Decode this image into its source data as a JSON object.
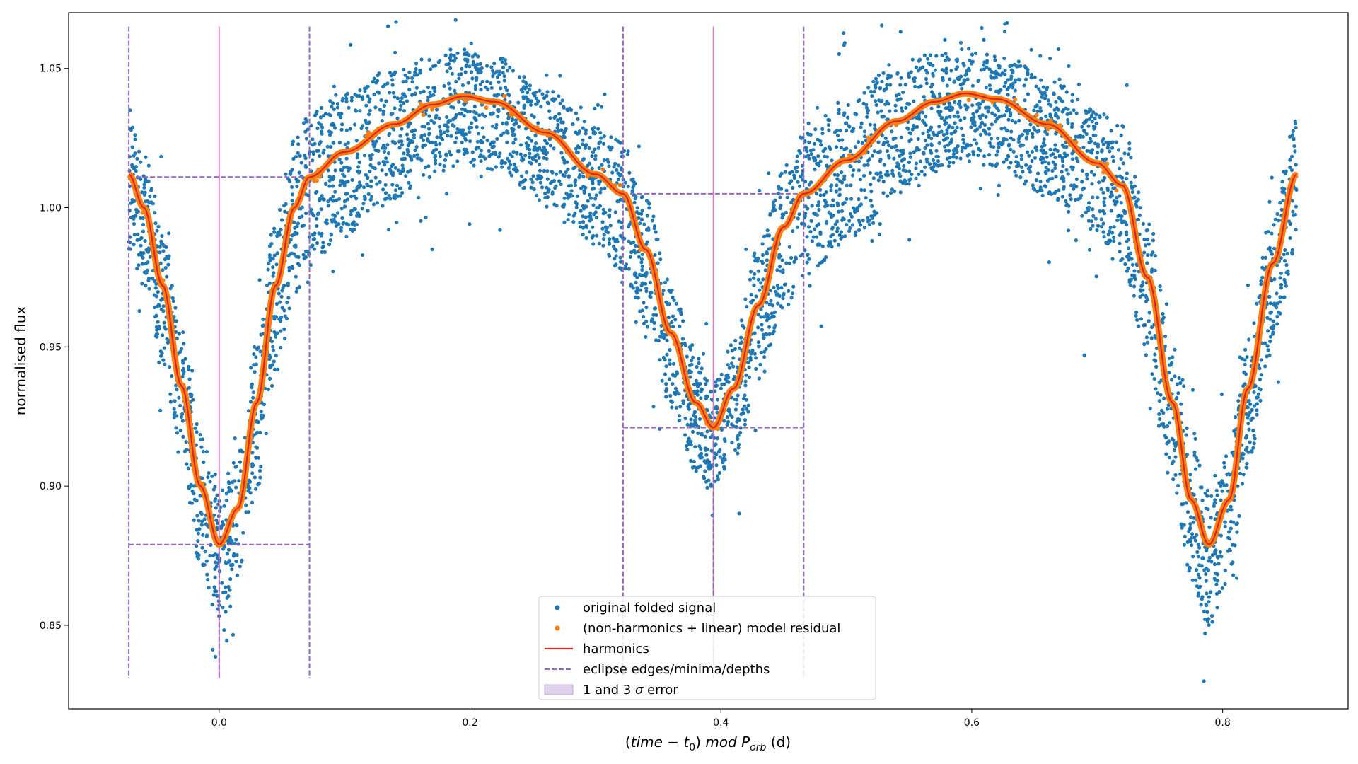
{
  "chart_data": {
    "type": "scatter",
    "xlabel_parts": [
      "(",
      "time",
      " − ",
      "t",
      "0",
      ") ",
      "mod",
      " ",
      "P",
      "orb",
      " (d)"
    ],
    "ylabel": "normalised flux",
    "xlim": [
      -0.12,
      0.9
    ],
    "ylim": [
      0.82,
      1.07
    ],
    "x_ticks": [
      0.0,
      0.2,
      0.4,
      0.6,
      0.8
    ],
    "x_tick_labels": [
      "0.0",
      "0.2",
      "0.4",
      "0.6",
      "0.8"
    ],
    "y_ticks": [
      0.85,
      0.9,
      0.95,
      1.0,
      1.05
    ],
    "y_tick_labels": [
      "0.85",
      "0.90",
      "0.95",
      "1.00",
      "1.05"
    ],
    "period_range": [
      -0.072,
      0.859
    ],
    "harmonics_curve": {
      "x": [
        -0.072,
        -0.06,
        -0.045,
        -0.03,
        -0.015,
        0.0,
        0.015,
        0.03,
        0.045,
        0.06,
        0.072,
        0.1,
        0.14,
        0.17,
        0.195,
        0.22,
        0.26,
        0.3,
        0.322,
        0.34,
        0.36,
        0.38,
        0.394,
        0.41,
        0.43,
        0.45,
        0.466,
        0.5,
        0.54,
        0.57,
        0.595,
        0.62,
        0.66,
        0.7,
        0.72,
        0.74,
        0.76,
        0.775,
        0.789,
        0.805,
        0.82,
        0.84,
        0.859
      ],
      "y": [
        1.012,
        1.0,
        0.972,
        0.936,
        0.9,
        0.879,
        0.892,
        0.93,
        0.972,
        1.0,
        1.011,
        1.02,
        1.03,
        1.037,
        1.04,
        1.038,
        1.027,
        1.012,
        1.005,
        0.985,
        0.955,
        0.93,
        0.921,
        0.935,
        0.965,
        0.993,
        1.005,
        1.017,
        1.031,
        1.038,
        1.041,
        1.039,
        1.03,
        1.016,
        1.008,
        0.975,
        0.93,
        0.895,
        0.879,
        0.895,
        0.935,
        0.98,
        1.012
      ]
    },
    "scatter_band_halfwidth": {
      "x": [
        -0.072,
        0.0,
        0.05,
        0.072,
        0.1,
        0.195,
        0.3,
        0.322,
        0.394,
        0.44,
        0.466,
        0.5,
        0.595,
        0.7,
        0.72,
        0.789,
        0.82,
        0.859
      ],
      "h": [
        0.028,
        0.028,
        0.034,
        0.033,
        0.03,
        0.024,
        0.025,
        0.028,
        0.024,
        0.03,
        0.031,
        0.03,
        0.024,
        0.027,
        0.03,
        0.03,
        0.028,
        0.028
      ]
    },
    "eclipse_edges": {
      "primary": {
        "minimum": 0.0,
        "edges": [
          -0.072,
          0.072
        ],
        "depth": [
          0.879,
          1.011
        ]
      },
      "secondary": {
        "minimum": 0.394,
        "edges": [
          0.322,
          0.466
        ],
        "depth": [
          0.921,
          1.005
        ]
      },
      "vline_range": [
        0.831,
        1.065
      ]
    },
    "legend": {
      "placement": "lower-center",
      "entries": [
        {
          "label": "original folded signal",
          "marker": "dot",
          "color": "#1f77b4"
        },
        {
          "label": "(non-harmonics + linear) model residual",
          "marker": "dot",
          "color": "#ff7f0e"
        },
        {
          "label": "harmonics",
          "marker": "line",
          "color": "#d62728"
        },
        {
          "label": "eclipse edges/minima/depths",
          "marker": "dashed",
          "color": "#9467bd"
        },
        {
          "label_parts": [
            "1 and 3 ",
            "σ",
            " error"
          ],
          "marker": "patch",
          "color": "#9467bd"
        }
      ]
    },
    "colors": {
      "signal": "#1f77b4",
      "residual": "#ff7f0e",
      "harmonics": "#d62728",
      "eclipse": "#9467bd",
      "minimum_line": "#e377c2"
    },
    "grid": false
  }
}
